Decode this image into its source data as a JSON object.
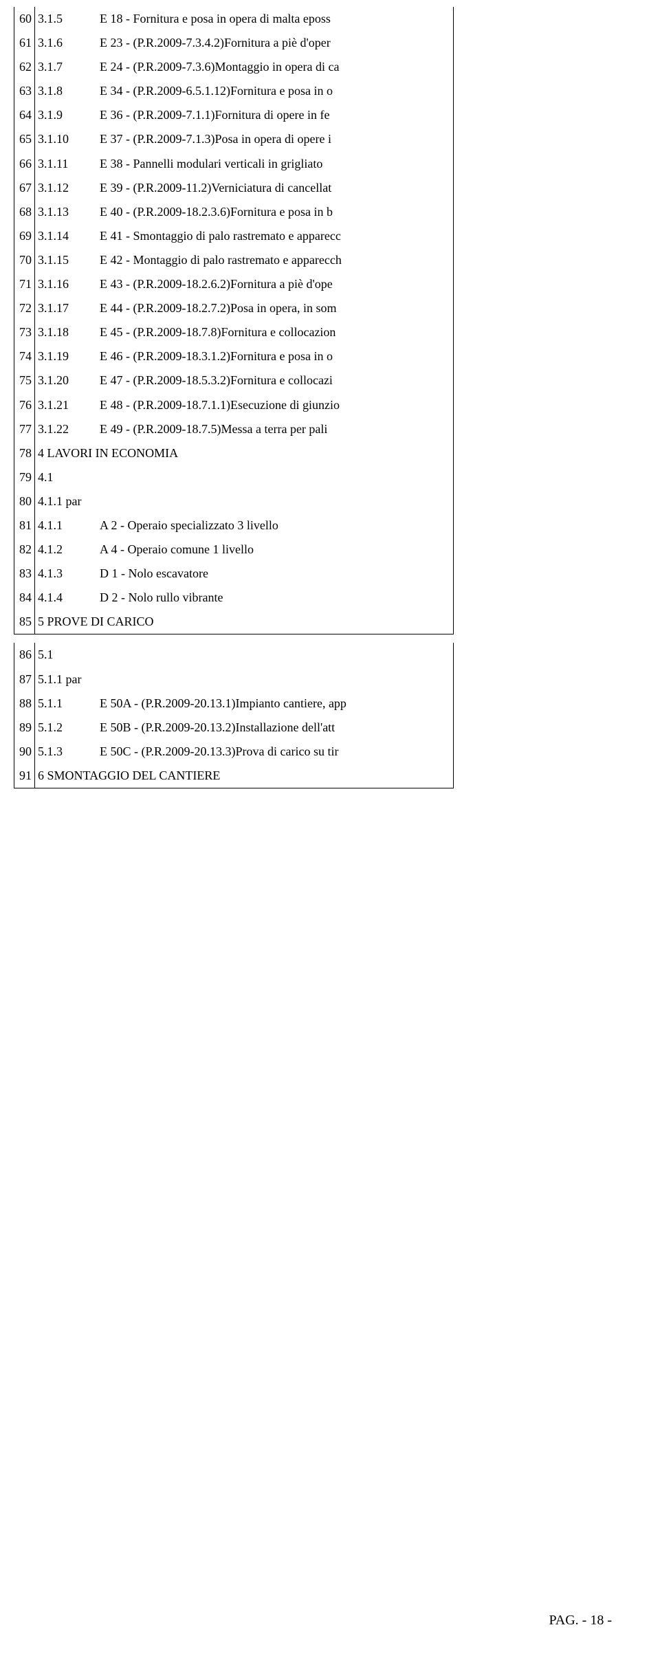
{
  "rows": [
    {
      "n": "60",
      "code": "3.1.5",
      "desc": "E  18 - Fornitura e posa in opera di malta eposs"
    },
    {
      "n": "61",
      "code": "3.1.6",
      "desc": "E  23 - (P.R.2009-7.3.4.2)Fornitura a piè d'oper"
    },
    {
      "n": "62",
      "code": "3.1.7",
      "desc": "E  24 - (P.R.2009-7.3.6)Montaggio in opera di ca"
    },
    {
      "n": "63",
      "code": "3.1.8",
      "desc": "E  34 - (P.R.2009-6.5.1.12)Fornitura e posa in o"
    },
    {
      "n": "64",
      "code": "3.1.9",
      "desc": "E  36 - (P.R.2009-7.1.1)Fornitura di opere in fe"
    },
    {
      "n": "65",
      "code": "3.1.10",
      "desc": "E  37 - (P.R.2009-7.1.3)Posa in opera di opere i"
    },
    {
      "n": "66",
      "code": "3.1.11",
      "desc": "E  38 - Pannelli modulari verticali in grigliato"
    },
    {
      "n": "67",
      "code": "3.1.12",
      "desc": "E  39 - (P.R.2009-11.2)Verniciatura di cancellat"
    },
    {
      "n": "68",
      "code": "3.1.13",
      "desc": "E  40 - (P.R.2009-18.2.3.6)Fornitura e posa in b"
    },
    {
      "n": "69",
      "code": "3.1.14",
      "desc": "E  41 - Smontaggio di palo rastremato e apparecc"
    },
    {
      "n": "70",
      "code": "3.1.15",
      "desc": "E  42 - Montaggio di palo rastremato e apparecch"
    },
    {
      "n": "71",
      "code": "3.1.16",
      "desc": "E  43 - (P.R.2009-18.2.6.2)Fornitura a piè d'ope"
    },
    {
      "n": "72",
      "code": "3.1.17",
      "desc": "E  44 - (P.R.2009-18.2.7.2)Posa in opera, in som"
    },
    {
      "n": "73",
      "code": "3.1.18",
      "desc": "E  45 - (P.R.2009-18.7.8)Fornitura e collocazion"
    },
    {
      "n": "74",
      "code": "3.1.19",
      "desc": "E  46 - (P.R.2009-18.3.1.2)Fornitura e posa in o"
    },
    {
      "n": "75",
      "code": "3.1.20",
      "desc": "E  47 - (P.R.2009-18.5.3.2)Fornitura e collocazi"
    },
    {
      "n": "76",
      "code": "3.1.21",
      "desc": "E  48 - (P.R.2009-18.7.1.1)Esecuzione di giunzio"
    },
    {
      "n": "77",
      "code": "3.1.22",
      "desc": "E  49 - (P.R.2009-18.7.5)Messa a terra per pali"
    },
    {
      "n": "78",
      "code": "4  LAVORI IN ECONOMIA",
      "desc": "",
      "section": true
    },
    {
      "n": "79",
      "code": "4.1",
      "desc": ""
    },
    {
      "n": "80",
      "code": "4.1.1 par",
      "desc": ""
    },
    {
      "n": "81",
      "code": "4.1.1",
      "desc": "A  2 - Operaio specializzato 3 livello"
    },
    {
      "n": "82",
      "code": "4.1.2",
      "desc": "A  4 - Operaio comune 1 livello"
    },
    {
      "n": "83",
      "code": "4.1.3",
      "desc": "D  1 - Nolo escavatore"
    },
    {
      "n": "84",
      "code": "4.1.4",
      "desc": "D  2 - Nolo rullo vibrante"
    },
    {
      "n": "85",
      "code": "5  PROVE DI CARICO",
      "desc": "",
      "section": true
    }
  ],
  "rows2": [
    {
      "n": "86",
      "code": "5.1",
      "desc": ""
    },
    {
      "n": "87",
      "code": "5.1.1 par",
      "desc": ""
    },
    {
      "n": "88",
      "code": "5.1.1",
      "desc": "E  50A - (P.R.2009-20.13.1)Impianto cantiere, app"
    },
    {
      "n": "89",
      "code": "5.1.2",
      "desc": "E  50B - (P.R.2009-20.13.2)Installazione dell'att"
    },
    {
      "n": "90",
      "code": "5.1.3",
      "desc": "E  50C - (P.R.2009-20.13.3)Prova di carico su tir"
    },
    {
      "n": "91",
      "code": "6  SMONTAGGIO DEL CANTIERE",
      "desc": "",
      "section": true
    }
  ],
  "pager": "PAG.  - 18 -"
}
